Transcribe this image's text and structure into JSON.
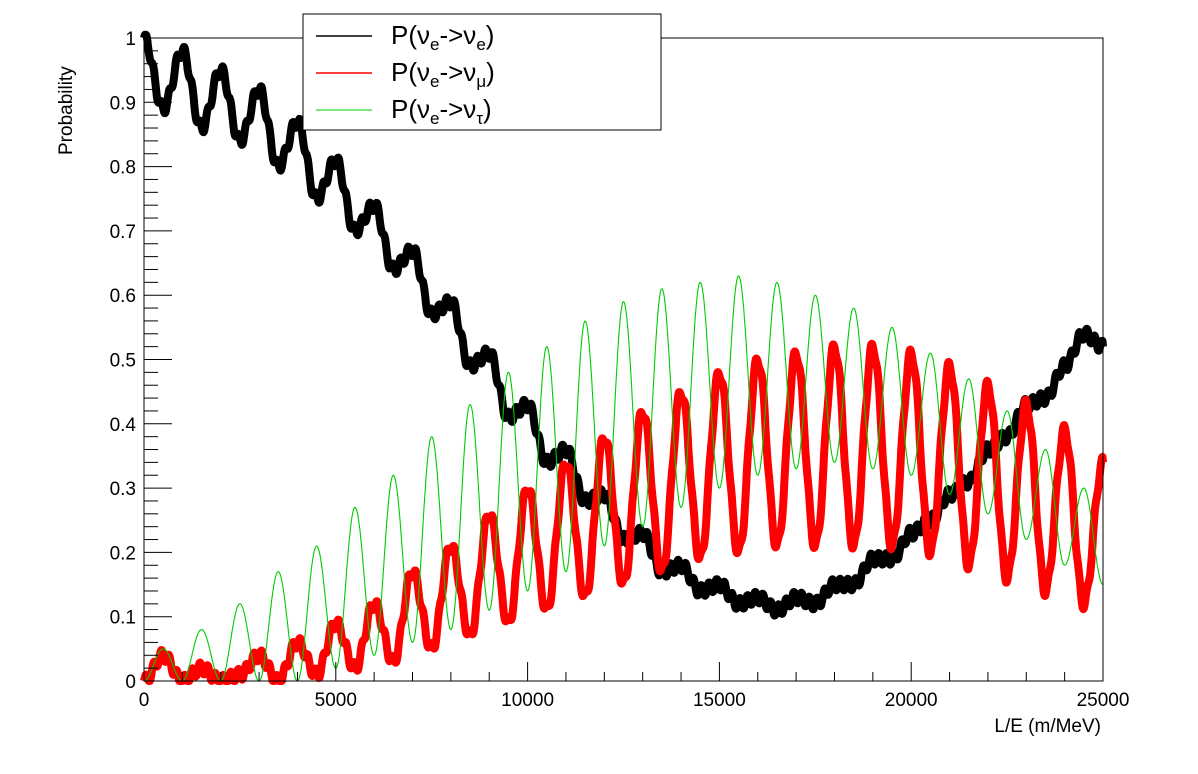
{
  "chart_data": {
    "type": "line",
    "xlabel": "L/E (m/MeV)",
    "ylabel": "Probability",
    "xlim": [
      0,
      25000
    ],
    "ylim": [
      0,
      1
    ],
    "x_ticks": [
      "0",
      "5000",
      "10000",
      "15000",
      "20000",
      "25000"
    ],
    "y_ticks": [
      "0",
      "0.1",
      "0.2",
      "0.3",
      "0.4",
      "0.5",
      "0.6",
      "0.7",
      "0.8",
      "0.9",
      "1"
    ],
    "grid": false,
    "legend_position": "top-center",
    "series": [
      {
        "name": "P(νe->νe)",
        "legend": {
          "main": "P(ν",
          "sub1": "e",
          "mid": "->ν",
          "sub2": "e",
          "end": ")"
        },
        "color": "#000000",
        "style": "thick band with fast oscillation",
        "x": [
          0,
          500,
          1000,
          1500,
          2000,
          2500,
          3000,
          3500,
          4000,
          4500,
          5000,
          5500,
          6000,
          6500,
          7000,
          7500,
          8000,
          8500,
          9000,
          9500,
          10000,
          10500,
          11000,
          11500,
          12000,
          12500,
          13000,
          13500,
          14000,
          14500,
          15000,
          15500,
          16000,
          16500,
          17000,
          17500,
          18000,
          18500,
          19000,
          19500,
          20000,
          20500,
          21000,
          21500,
          22000,
          22500,
          23000,
          23500,
          24000,
          24500,
          25000
        ],
        "y": [
          1.0,
          0.89,
          0.98,
          0.86,
          0.95,
          0.84,
          0.92,
          0.8,
          0.87,
          0.75,
          0.81,
          0.7,
          0.74,
          0.64,
          0.67,
          0.57,
          0.59,
          0.49,
          0.51,
          0.41,
          0.43,
          0.34,
          0.36,
          0.28,
          0.29,
          0.22,
          0.23,
          0.17,
          0.18,
          0.14,
          0.15,
          0.12,
          0.13,
          0.11,
          0.13,
          0.12,
          0.15,
          0.15,
          0.19,
          0.19,
          0.23,
          0.25,
          0.29,
          0.31,
          0.36,
          0.38,
          0.43,
          0.44,
          0.49,
          0.54,
          0.52
        ]
      },
      {
        "name": "P(νe->νμ)",
        "legend": {
          "main": "P(ν",
          "sub1": "e",
          "mid": "->ν",
          "sub2": "μ",
          "end": ")"
        },
        "color": "#ff0000",
        "style": "thick band with fast oscillation",
        "x": [
          0,
          500,
          1000,
          1500,
          2000,
          2500,
          3000,
          3500,
          4000,
          4500,
          5000,
          5500,
          6000,
          6500,
          7000,
          7500,
          8000,
          8500,
          9000,
          9500,
          10000,
          10500,
          11000,
          11500,
          12000,
          12500,
          13000,
          13500,
          14000,
          14500,
          15000,
          15500,
          16000,
          16500,
          17000,
          17500,
          18000,
          18500,
          19000,
          19500,
          20000,
          20500,
          21000,
          21500,
          22000,
          22500,
          23000,
          23500,
          24000,
          24500,
          25000
        ],
        "y": [
          0.0,
          0.04,
          0.0,
          0.02,
          0.0,
          0.01,
          0.04,
          0.0,
          0.06,
          0.01,
          0.09,
          0.02,
          0.12,
          0.03,
          0.17,
          0.05,
          0.21,
          0.07,
          0.26,
          0.09,
          0.3,
          0.11,
          0.34,
          0.13,
          0.38,
          0.15,
          0.42,
          0.17,
          0.45,
          0.19,
          0.48,
          0.2,
          0.5,
          0.21,
          0.51,
          0.21,
          0.52,
          0.21,
          0.52,
          0.21,
          0.51,
          0.2,
          0.49,
          0.18,
          0.46,
          0.16,
          0.43,
          0.14,
          0.39,
          0.12,
          0.34
        ]
      },
      {
        "name": "P(νe->ντ)",
        "legend": {
          "main": "P(ν",
          "sub1": "e",
          "mid": "->ν",
          "sub2": "τ",
          "end": ")"
        },
        "color": "#00cc00",
        "style": "thin line",
        "x": [
          0,
          500,
          1000,
          1500,
          2000,
          2500,
          3000,
          3500,
          4000,
          4500,
          5000,
          5500,
          6000,
          6500,
          7000,
          7500,
          8000,
          8500,
          9000,
          9500,
          10000,
          10500,
          11000,
          11500,
          12000,
          12500,
          13000,
          13500,
          14000,
          14500,
          15000,
          15500,
          16000,
          16500,
          17000,
          17500,
          18000,
          18500,
          19000,
          19500,
          20000,
          20500,
          21000,
          21500,
          22000,
          22500,
          23000,
          23500,
          24000,
          24500,
          25000
        ],
        "y": [
          0.0,
          0.05,
          0.0,
          0.08,
          0.0,
          0.12,
          0.0,
          0.17,
          0.0,
          0.21,
          0.02,
          0.27,
          0.04,
          0.32,
          0.06,
          0.38,
          0.08,
          0.43,
          0.11,
          0.48,
          0.14,
          0.52,
          0.17,
          0.56,
          0.21,
          0.59,
          0.24,
          0.61,
          0.27,
          0.62,
          0.3,
          0.63,
          0.32,
          0.62,
          0.33,
          0.6,
          0.34,
          0.58,
          0.33,
          0.55,
          0.32,
          0.51,
          0.29,
          0.47,
          0.26,
          0.42,
          0.22,
          0.36,
          0.18,
          0.3,
          0.15
        ]
      }
    ]
  }
}
